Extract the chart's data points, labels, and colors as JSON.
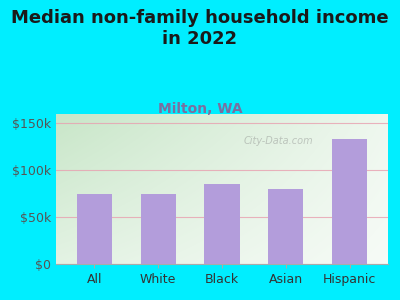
{
  "title": "Median non-family household income\nin 2022",
  "subtitle": "Milton, WA",
  "categories": [
    "All",
    "White",
    "Black",
    "Asian",
    "Hispanic"
  ],
  "values": [
    75000,
    75000,
    85000,
    80000,
    133000
  ],
  "bar_color": "#b39ddb",
  "bg_outer": "#00eeff",
  "yticks": [
    0,
    50000,
    100000,
    150000
  ],
  "ytick_labels": [
    "$0",
    "$50k",
    "$100k",
    "$150k"
  ],
  "ylim": [
    0,
    160000
  ],
  "title_fontsize": 13,
  "subtitle_fontsize": 10,
  "tick_fontsize": 9,
  "watermark": "City-Data.com"
}
